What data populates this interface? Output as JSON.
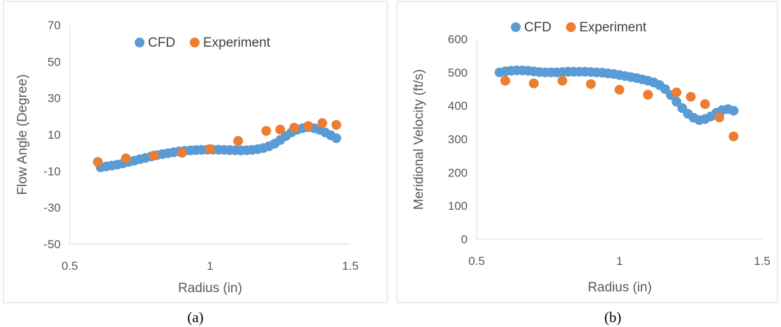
{
  "chart_data": [
    {
      "type": "scatter",
      "caption": "(a)",
      "xlabel": "Radius (in)",
      "ylabel": "Flow Angle (Degree)",
      "xlim": [
        0.5,
        1.5
      ],
      "ylim": [
        -50,
        70
      ],
      "x_ticks": [
        "0.5",
        "1",
        "1.5"
      ],
      "y_ticks": [
        "-50",
        "-30",
        "-10",
        "10",
        "30",
        "50",
        "70"
      ],
      "grid": false,
      "legend": "top-center",
      "series": [
        {
          "name": "CFD",
          "color": "#5B9BD5",
          "x": [
            0.61,
            0.63,
            0.65,
            0.67,
            0.69,
            0.71,
            0.73,
            0.75,
            0.77,
            0.79,
            0.81,
            0.83,
            0.85,
            0.87,
            0.89,
            0.91,
            0.93,
            0.95,
            0.97,
            0.99,
            1.01,
            1.03,
            1.05,
            1.07,
            1.09,
            1.11,
            1.13,
            1.15,
            1.17,
            1.19,
            1.21,
            1.23,
            1.25,
            1.27,
            1.29,
            1.31,
            1.33,
            1.35,
            1.37,
            1.39,
            1.41,
            1.43,
            1.45
          ],
          "y": [
            -8,
            -7.5,
            -7,
            -6.5,
            -5.8,
            -5,
            -4.3,
            -3.5,
            -2.8,
            -2,
            -1.3,
            -0.7,
            -0.2,
            0.3,
            0.8,
            1.1,
            1.3,
            1.5,
            1.6,
            1.7,
            1.7,
            1.7,
            1.6,
            1.5,
            1.4,
            1.3,
            1.4,
            1.6,
            2.0,
            2.6,
            3.6,
            5.0,
            7.0,
            9.2,
            11.2,
            12.6,
            13.5,
            14.0,
            13.5,
            12.6,
            11.2,
            9.6,
            8.0
          ]
        },
        {
          "name": "Experiment",
          "color": "#ED7D31",
          "x": [
            0.6,
            0.7,
            0.8,
            0.9,
            1.0,
            1.1,
            1.2,
            1.25,
            1.3,
            1.35,
            1.4,
            1.45
          ],
          "y": [
            -5,
            -3,
            -1.5,
            0,
            2,
            6.5,
            12,
            12.7,
            13.8,
            14.7,
            16.3,
            15.3
          ]
        }
      ]
    },
    {
      "type": "scatter",
      "caption": "(b)",
      "xlabel": "Radius (in)",
      "ylabel": "Meridional Velocity (ft/s)",
      "xlim": [
        0.5,
        1.5
      ],
      "ylim": [
        0,
        600
      ],
      "x_ticks": [
        "0.5",
        "1",
        "1.5"
      ],
      "y_ticks": [
        "0",
        "100",
        "200",
        "300",
        "400",
        "500",
        "600"
      ],
      "grid": false,
      "legend": "top-center",
      "series": [
        {
          "name": "CFD",
          "color": "#5B9BD5",
          "x": [
            0.58,
            0.6,
            0.62,
            0.64,
            0.66,
            0.68,
            0.7,
            0.72,
            0.74,
            0.76,
            0.78,
            0.8,
            0.82,
            0.84,
            0.86,
            0.88,
            0.9,
            0.92,
            0.94,
            0.96,
            0.98,
            1.0,
            1.02,
            1.04,
            1.06,
            1.08,
            1.1,
            1.12,
            1.14,
            1.16,
            1.18,
            1.2,
            1.22,
            1.24,
            1.26,
            1.28,
            1.3,
            1.32,
            1.34,
            1.36,
            1.38,
            1.4
          ],
          "y": [
            500,
            503,
            505,
            506,
            506,
            505,
            503,
            501,
            500,
            500,
            500,
            501,
            502,
            502,
            502,
            502,
            501,
            500,
            499,
            497,
            495,
            492,
            489,
            486,
            483,
            479,
            475,
            470,
            462,
            450,
            432,
            412,
            393,
            376,
            364,
            357,
            360,
            368,
            379,
            387,
            390,
            385
          ]
        },
        {
          "name": "Experiment",
          "color": "#ED7D31",
          "x": [
            0.6,
            0.7,
            0.8,
            0.9,
            1.0,
            1.1,
            1.2,
            1.25,
            1.3,
            1.35,
            1.4
          ],
          "y": [
            475,
            467,
            475,
            465,
            448,
            433,
            440,
            427,
            405,
            365,
            308
          ]
        }
      ]
    }
  ]
}
